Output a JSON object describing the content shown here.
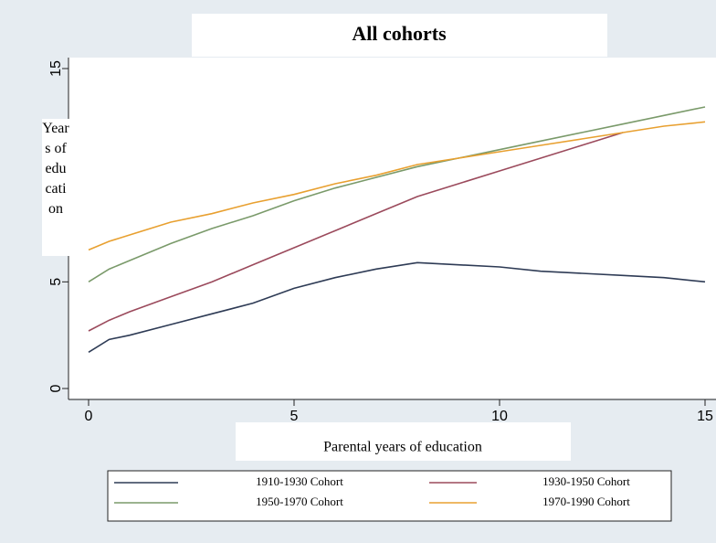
{
  "chart_data": {
    "type": "line",
    "title": "All cohorts",
    "y_label": "Years of education",
    "x_label": "Parental years of education",
    "x": [
      0,
      0.5,
      1,
      2,
      3,
      4,
      5,
      6,
      7,
      8,
      9,
      10,
      11,
      12,
      13,
      14,
      15
    ],
    "series": [
      {
        "name": "1910-1930 Cohort",
        "color": "#2e3b55",
        "values": [
          1.7,
          2.3,
          2.5,
          3.0,
          3.5,
          4.0,
          4.7,
          5.2,
          5.6,
          5.9,
          5.8,
          5.7,
          5.5,
          5.4,
          5.3,
          5.2,
          5.0
        ]
      },
      {
        "name": "1930-1950 Cohort",
        "color": "#9b4a5c",
        "values": [
          2.7,
          3.2,
          3.6,
          4.3,
          5.0,
          5.8,
          6.6,
          7.4,
          8.2,
          9.0,
          9.6,
          10.2,
          10.8,
          11.4,
          12.0,
          null,
          null
        ]
      },
      {
        "name": "1950-1970 Cohort",
        "color": "#7a9a6a",
        "values": [
          5.0,
          5.6,
          6.0,
          6.8,
          7.5,
          8.1,
          8.8,
          9.4,
          9.9,
          10.4,
          10.8,
          11.2,
          11.6,
          12.0,
          12.4,
          12.8,
          13.2
        ]
      },
      {
        "name": "1970-1990 Cohort",
        "color": "#e8a030",
        "values": [
          6.5,
          6.9,
          7.2,
          7.8,
          8.2,
          8.7,
          9.1,
          9.6,
          10.0,
          10.5,
          10.8,
          11.1,
          11.4,
          11.7,
          12.0,
          12.3,
          12.5
        ]
      }
    ],
    "xlim": [
      0,
      15
    ],
    "xticks": [
      0,
      5,
      10,
      15
    ],
    "ylim": [
      0,
      15
    ],
    "yticks": [
      0,
      5,
      10,
      15
    ]
  }
}
